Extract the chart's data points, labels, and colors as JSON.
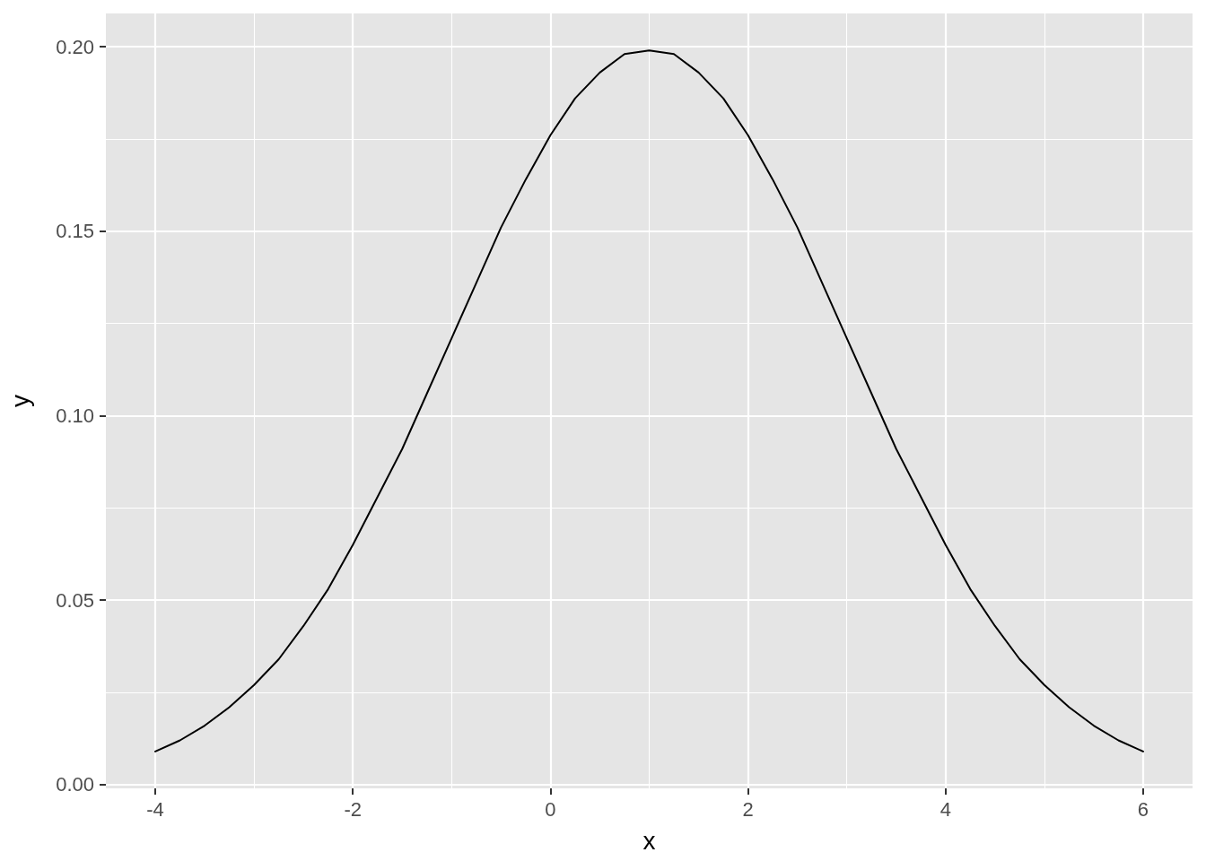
{
  "chart_data": {
    "type": "line",
    "xlabel": "x",
    "ylabel": "y",
    "x": [
      -4,
      -3.75,
      -3.5,
      -3.25,
      -3,
      -2.75,
      -2.5,
      -2.25,
      -2,
      -1.75,
      -1.5,
      -1.25,
      -1,
      -0.75,
      -0.5,
      -0.25,
      0,
      0.25,
      0.5,
      0.75,
      1,
      1.25,
      1.5,
      1.75,
      2,
      2.25,
      2.5,
      2.75,
      3,
      3.25,
      3.5,
      3.75,
      4,
      4.25,
      4.5,
      4.75,
      5,
      5.25,
      5.5,
      5.75,
      6
    ],
    "series": [
      {
        "color": "#000000",
        "values": [
          0.009,
          0.012,
          0.016,
          0.021,
          0.027,
          0.034,
          0.043,
          0.053,
          0.065,
          0.078,
          0.091,
          0.106,
          0.121,
          0.136,
          0.151,
          0.164,
          0.176,
          0.186,
          0.193,
          0.198,
          0.199,
          0.198,
          0.193,
          0.186,
          0.176,
          0.164,
          0.151,
          0.136,
          0.121,
          0.106,
          0.091,
          0.078,
          0.065,
          0.053,
          0.043,
          0.034,
          0.027,
          0.021,
          0.016,
          0.012,
          0.009
        ]
      }
    ],
    "xlim": [
      -4.5,
      6.5
    ],
    "xticks": [
      -4,
      -2,
      0,
      2,
      4,
      6
    ],
    "ylim": [
      -0.001,
      0.209
    ],
    "yticks": [
      {
        "value": 0,
        "label": "0.00"
      },
      0.05,
      {
        "value": 0.1,
        "label": "0.10"
      },
      {
        "value": 0.15,
        "label": "0.15"
      },
      {
        "value": 0.2,
        "label": "0.20"
      }
    ],
    "grid": true
  }
}
